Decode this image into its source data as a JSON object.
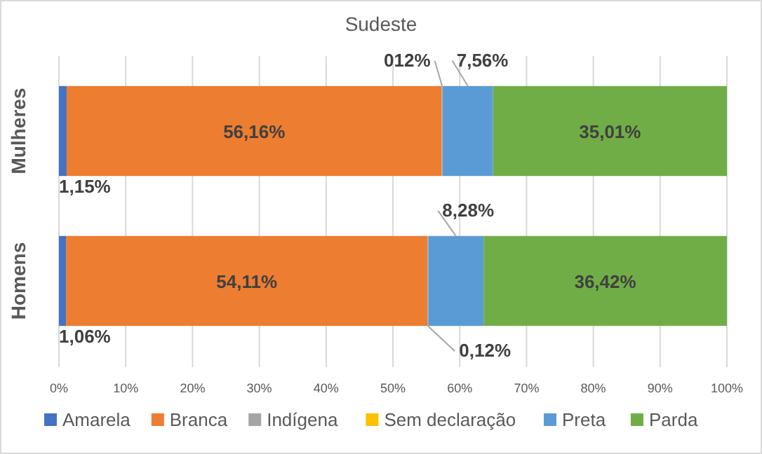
{
  "chart_data": {
    "type": "bar",
    "orientation": "horizontal",
    "stacked": true,
    "title": "Sudeste",
    "categories": [
      "Mulheres",
      "Homens"
    ],
    "series": [
      {
        "name": "Amarela",
        "color": "#4472c4",
        "values": [
          1.15,
          1.06
        ],
        "value_labels": [
          "1,15%",
          "1,06%"
        ]
      },
      {
        "name": "Branca",
        "color": "#ed7d31",
        "values": [
          56.16,
          54.11
        ],
        "value_labels": [
          "56,16%",
          "54,11%"
        ]
      },
      {
        "name": "Indígena",
        "color": "#a5a5a5",
        "values": [
          0.12,
          0.12
        ],
        "value_labels": [
          "012%",
          "0,12%"
        ]
      },
      {
        "name": "Sem declaração",
        "color": "#ffc000",
        "values": [
          0,
          0
        ],
        "value_labels": [
          null,
          null
        ]
      },
      {
        "name": "Preta",
        "color": "#5b9bd5",
        "values": [
          7.56,
          8.28
        ],
        "value_labels": [
          "7,56%",
          "8,28%"
        ]
      },
      {
        "name": "Parda",
        "color": "#70ad47",
        "values": [
          35.01,
          36.42
        ],
        "value_labels": [
          "35,01%",
          "36,42%"
        ]
      }
    ],
    "xlim": [
      0,
      100
    ],
    "xticks": [
      {
        "value": 0,
        "label": "0%"
      },
      {
        "value": 10,
        "label": "10%"
      },
      {
        "value": 20,
        "label": "20%"
      },
      {
        "value": 30,
        "label": "30%"
      },
      {
        "value": 40,
        "label": "40%"
      },
      {
        "value": 50,
        "label": "50%"
      },
      {
        "value": 60,
        "label": "60%"
      },
      {
        "value": 70,
        "label": "70%"
      },
      {
        "value": 80,
        "label": "80%"
      },
      {
        "value": 90,
        "label": "90%"
      },
      {
        "value": 100,
        "label": "100%"
      }
    ],
    "grid": "x",
    "legend": "bottom"
  }
}
